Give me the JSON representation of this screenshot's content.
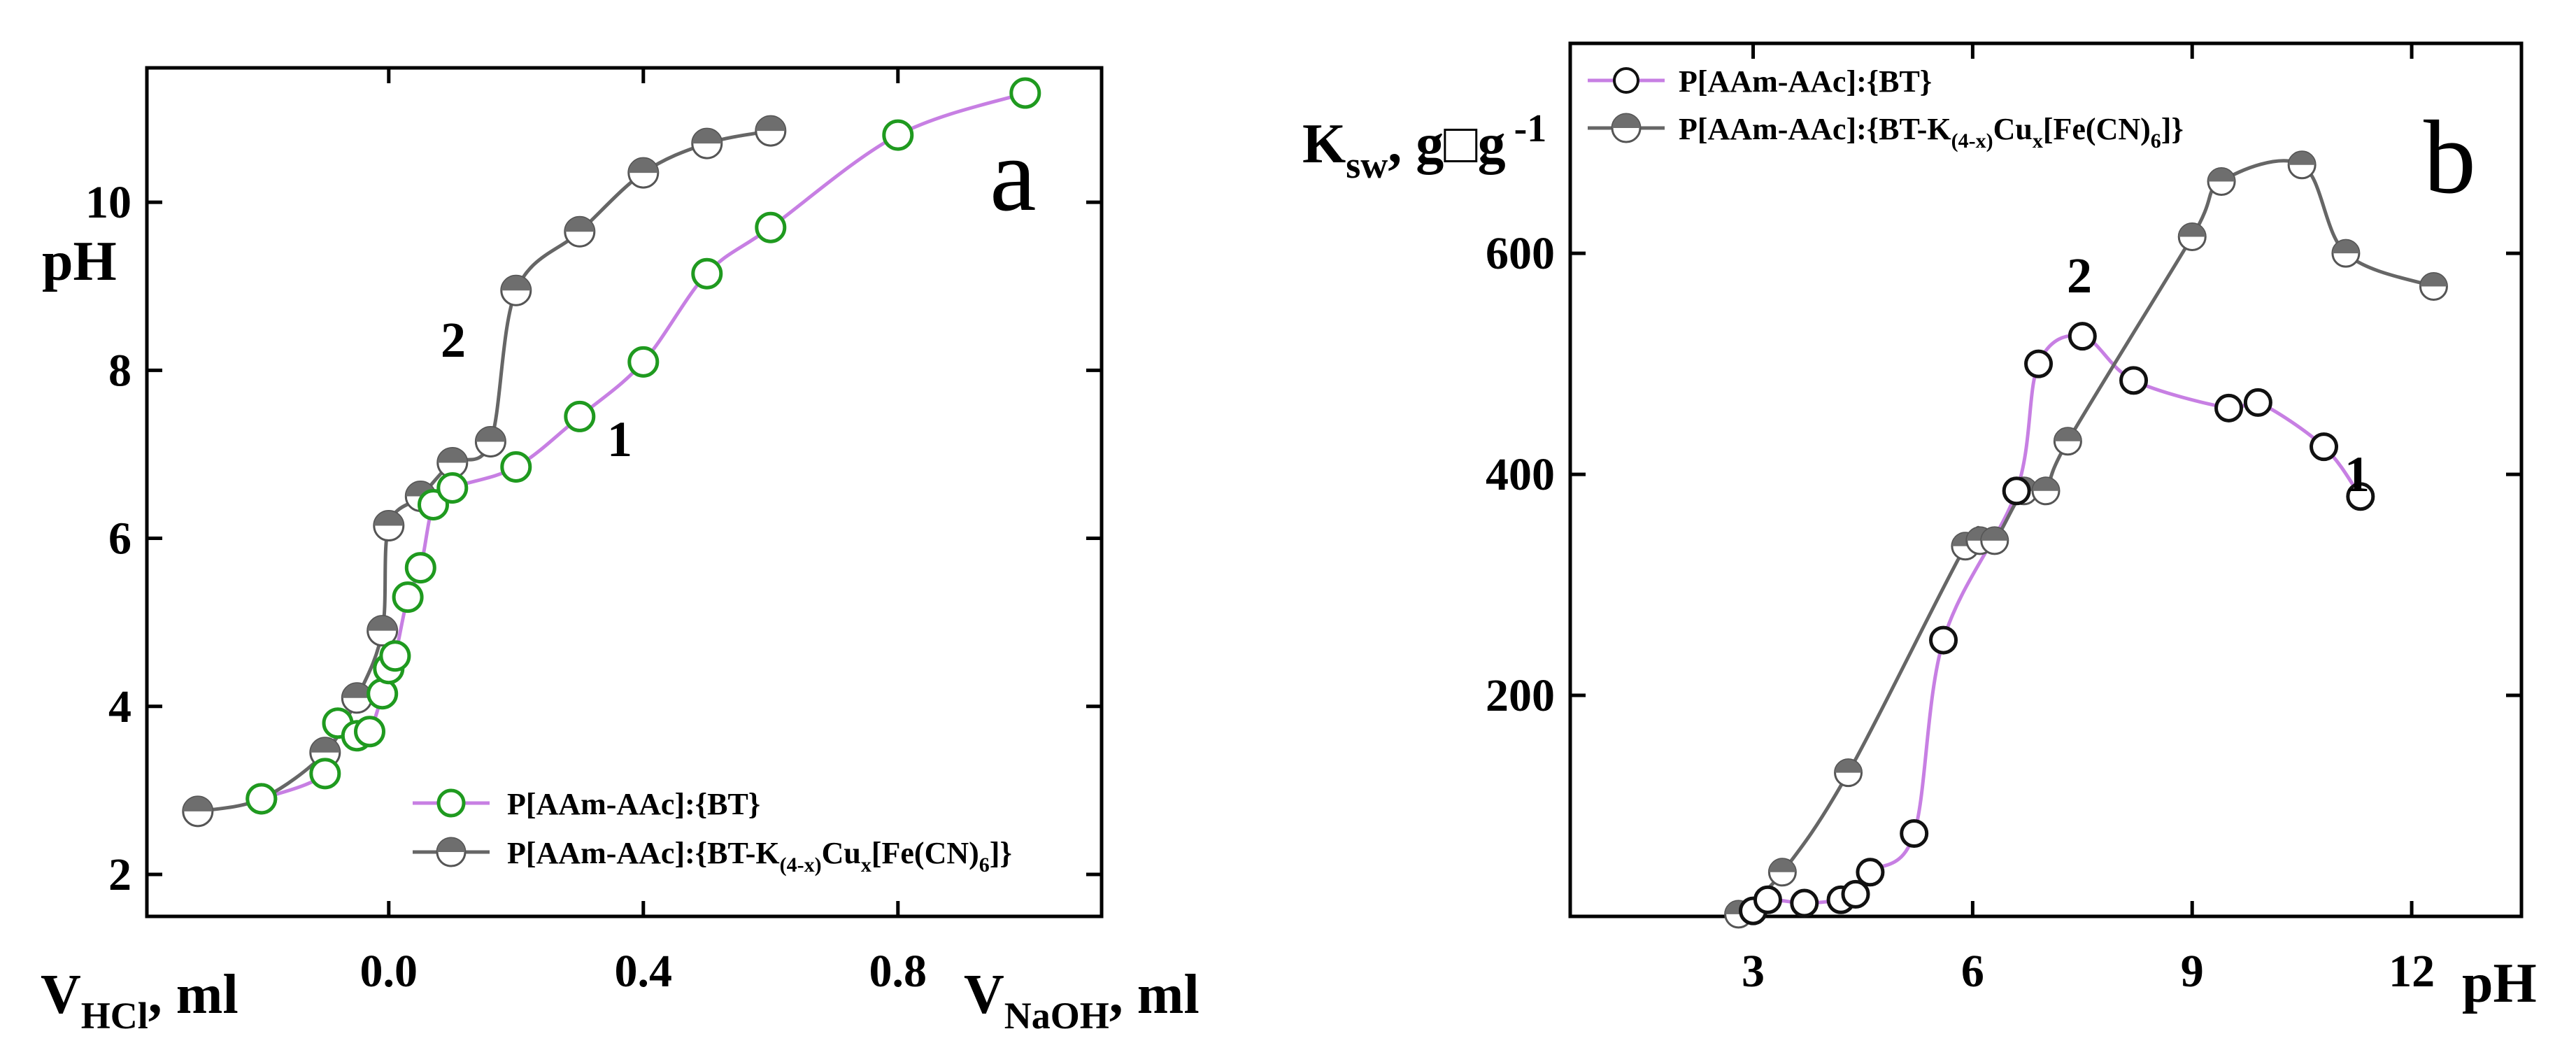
{
  "colors": {
    "series1": "#c77fe3",
    "series2": "#666666",
    "marker1_edge": "#1f9a1f",
    "marker2_fill": "#6e6e6e"
  },
  "chart_data": [
    {
      "type": "line",
      "panel_label": "a",
      "ylabel": "pH",
      "xlabel_left_main": "V",
      "xlabel_left_sub": "HCl",
      "xlabel_left_unit": ", ml",
      "xlabel_right_main": "V",
      "xlabel_right_sub": "NaOH",
      "xlabel_right_unit": ", ml",
      "xlim": [
        -0.38,
        1.12
      ],
      "ylim": [
        1.5,
        11.6
      ],
      "x_ticks": [
        0.0,
        0.4,
        0.8
      ],
      "x_tick_labels": [
        "0.0",
        "0.4",
        "0.8"
      ],
      "y_ticks": [
        2,
        4,
        6,
        8,
        10
      ],
      "y_tick_labels": [
        "2",
        "4",
        "6",
        "8",
        "10"
      ],
      "legend_position": "bottom-right",
      "series": [
        {
          "name": "P[AAm-AAc]:{BT}",
          "curve_label": "1",
          "marker": "open-circle",
          "x": [
            -0.2,
            -0.1,
            -0.08,
            -0.05,
            -0.03,
            -0.01,
            0.0,
            0.01,
            0.03,
            0.05,
            0.07,
            0.1,
            0.2,
            0.3,
            0.4,
            0.5,
            0.6,
            0.8,
            1.0
          ],
          "y": [
            2.9,
            3.2,
            3.8,
            3.65,
            3.7,
            4.15,
            4.45,
            4.6,
            5.3,
            5.65,
            6.4,
            6.6,
            6.85,
            7.45,
            8.1,
            9.15,
            9.7,
            10.8,
            11.3
          ]
        },
        {
          "name": "P[AAm-AAc]:{BT-K(4-x)Cux[Fe(CN)6]}",
          "curve_label": "2",
          "marker": "half-filled-circle",
          "x": [
            -0.3,
            -0.2,
            -0.1,
            -0.05,
            -0.01,
            0.0,
            0.05,
            0.1,
            0.16,
            0.2,
            0.3,
            0.4,
            0.5,
            0.6
          ],
          "y": [
            2.75,
            2.9,
            3.45,
            4.1,
            4.9,
            6.15,
            6.5,
            6.9,
            7.15,
            8.95,
            9.65,
            10.35,
            10.7,
            10.85
          ]
        }
      ],
      "legend": {
        "items": [
          {
            "text": "P[AAm-AAc]:{BT}"
          },
          {
            "t1": "P[AAm-AAc]:{BT-K",
            "s1": "(4-x)",
            "t2": "Cu",
            "s2": "x",
            "t3": "[Fe(CN)",
            "s3": "6",
            "t4": "]}"
          }
        ]
      }
    },
    {
      "type": "line",
      "panel_label": "b",
      "ylabel_main": "K",
      "ylabel_sub": "sw",
      "ylabel_unit": ", g",
      "ylabel_box": "□",
      "ylabel_g": "g",
      "ylabel_sup": "-1",
      "xlabel": "pH",
      "xlim": [
        0.5,
        13.5
      ],
      "ylim": [
        0,
        790
      ],
      "x_ticks": [
        3,
        6,
        9,
        12
      ],
      "x_tick_labels": [
        "3",
        "6",
        "9",
        "12"
      ],
      "y_ticks": [
        200,
        400,
        600
      ],
      "y_tick_labels": [
        "200",
        "400",
        "600"
      ],
      "legend_position": "top-left",
      "series": [
        {
          "name": "P[AAm-AAc]:{BT}",
          "curve_label": "1",
          "marker": "open-circle",
          "x": [
            3.0,
            3.2,
            3.7,
            4.2,
            4.4,
            4.6,
            5.2,
            5.6,
            6.6,
            6.9,
            7.5,
            8.2,
            9.5,
            9.9,
            10.8,
            11.3
          ],
          "y": [
            5,
            15,
            12,
            15,
            20,
            40,
            75,
            250,
            385,
            500,
            525,
            485,
            460,
            465,
            425,
            380
          ]
        },
        {
          "name": "P[AAm-AAc]:{BT-K(4-x)Cux[Fe(CN)6]}",
          "curve_label": "2",
          "marker": "half-filled-circle",
          "x": [
            2.8,
            3.4,
            4.3,
            5.9,
            6.1,
            6.3,
            6.7,
            7.0,
            7.3,
            9.0,
            9.4,
            10.5,
            11.1,
            12.3
          ],
          "y": [
            2,
            40,
            130,
            335,
            340,
            340,
            385,
            385,
            430,
            615,
            665,
            680,
            600,
            570
          ]
        }
      ],
      "legend": {
        "items": [
          {
            "text": "P[AAm-AAc]:{BT}"
          },
          {
            "t1": "P[AAm-AAc]:{BT-K",
            "s1": "(4-x)",
            "t2": "Cu",
            "s2": "x",
            "t3": "[Fe(CN)",
            "s3": "6",
            "t4": "]}"
          }
        ]
      }
    }
  ]
}
